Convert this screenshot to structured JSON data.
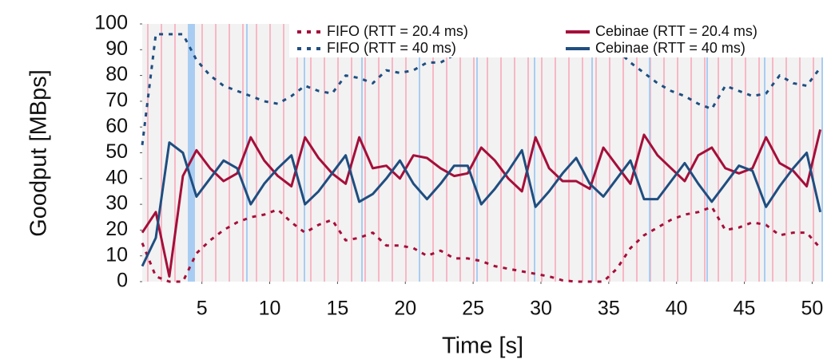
{
  "chart_data": {
    "type": "line",
    "xlabel": "Time [s]",
    "ylabel": "Goodput [MBps]",
    "xlim": [
      0.6,
      50.8
    ],
    "ylim": [
      0,
      100
    ],
    "xticks": [
      5,
      10,
      15,
      20,
      25,
      30,
      35,
      40,
      45,
      50
    ],
    "yticks": [
      0,
      10,
      20,
      30,
      40,
      50,
      60,
      70,
      80,
      90,
      100
    ],
    "legend": "top",
    "x": [
      0.6,
      1.6,
      2.6,
      3.6,
      4.6,
      5.6,
      6.6,
      7.6,
      8.6,
      9.6,
      10.6,
      11.6,
      12.6,
      13.6,
      14.6,
      15.6,
      16.6,
      17.6,
      18.6,
      19.6,
      20.6,
      21.6,
      22.6,
      23.6,
      24.6,
      25.6,
      26.6,
      27.6,
      28.6,
      29.6,
      30.6,
      31.6,
      32.6,
      33.6,
      34.6,
      35.6,
      36.6,
      37.6,
      38.6,
      39.6,
      40.6,
      41.6,
      42.6,
      43.6,
      44.6,
      45.6,
      46.6,
      47.6,
      48.6,
      49.6,
      50.6
    ],
    "series": [
      {
        "name": "FIFO (RTT = 20.4 ms)",
        "color": "#a50f3a",
        "style": "dashed",
        "values": [
          15,
          2,
          0,
          0,
          11,
          16,
          20,
          23,
          25,
          26,
          28,
          23,
          19,
          22,
          24,
          16,
          17,
          19,
          14,
          14,
          13,
          10,
          12,
          9,
          9,
          8,
          6,
          5,
          4,
          3,
          2,
          0.5,
          0,
          0,
          0,
          5,
          13,
          18,
          21,
          24,
          26,
          27,
          29,
          20,
          21,
          23,
          22,
          18,
          19,
          19,
          13
        ]
      },
      {
        "name": "FIFO (RTT = 40 ms)",
        "color": "#1f4e80",
        "style": "dashed",
        "values": [
          53,
          96,
          96,
          96,
          86,
          80,
          76,
          74,
          72,
          70,
          69,
          72,
          76,
          74,
          73,
          80,
          79,
          77,
          82,
          81,
          82,
          85,
          85,
          88,
          88,
          89,
          90,
          91,
          92,
          93,
          94,
          94,
          94,
          94,
          93,
          90,
          85,
          81,
          77,
          74,
          72,
          69,
          67,
          76,
          74,
          72,
          73,
          80,
          77,
          76,
          83
        ]
      },
      {
        "name": "Cebinae (RTT = 20.4 ms)",
        "color": "#a50f3a",
        "style": "solid",
        "values": [
          19,
          27,
          2,
          41,
          51,
          44,
          39,
          42,
          56,
          47,
          41,
          37,
          56,
          48,
          42,
          38,
          56,
          44,
          45,
          40,
          49,
          48,
          44,
          41,
          42,
          52,
          47,
          40,
          35,
          56,
          44,
          39,
          39,
          36,
          52,
          45,
          38,
          57,
          49,
          44,
          39,
          49,
          52,
          44,
          42,
          44,
          56,
          46,
          43,
          37,
          59
        ]
      },
      {
        "name": "Cebinae (RTT = 40 ms)",
        "color": "#1f4e80",
        "style": "solid",
        "values": [
          6,
          17,
          54,
          50,
          33,
          40,
          47,
          44,
          30,
          38,
          44,
          49,
          30,
          35,
          42,
          49,
          31,
          34,
          40,
          47,
          38,
          32,
          38,
          45,
          45,
          30,
          36,
          43,
          51,
          29,
          35,
          42,
          48,
          38,
          33,
          40,
          47,
          32,
          32,
          39,
          46,
          38,
          31,
          38,
          45,
          43,
          29,
          37,
          44,
          50,
          27
        ]
      }
    ]
  }
}
